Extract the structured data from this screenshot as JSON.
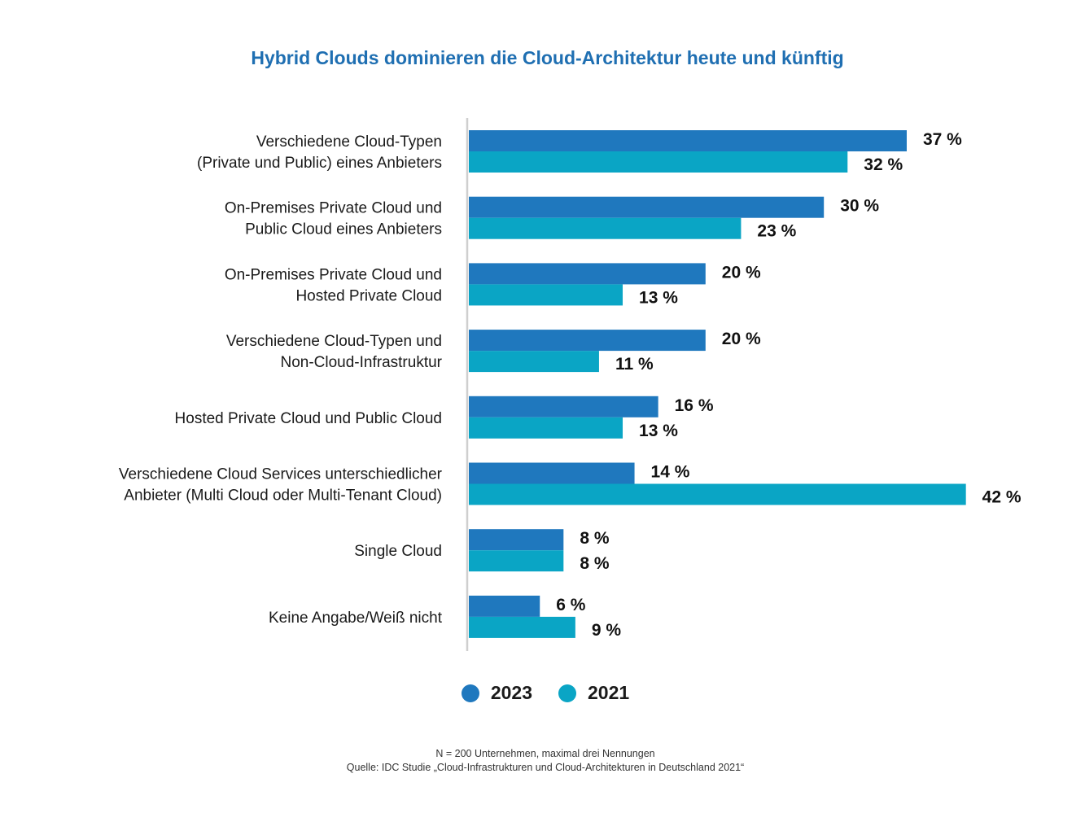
{
  "chart_data": {
    "type": "bar",
    "orientation": "horizontal",
    "title": "Hybrid Clouds dominieren die Cloud-Architektur heute und künftig",
    "categories": [
      [
        "Verschiedene Cloud-Typen",
        "(Private und Public) eines Anbieters"
      ],
      [
        "On-Premises  Private Cloud und",
        "Public Cloud eines Anbieters"
      ],
      [
        "On-Premises  Private Cloud und",
        "Hosted Private Cloud"
      ],
      [
        "Verschiedene Cloud-Typen und",
        "Non-Cloud-Infrastruktur"
      ],
      [
        "Hosted Private Cloud und Public Cloud"
      ],
      [
        "Verschiedene Cloud Services unterschiedlicher",
        "Anbieter (Multi Cloud oder Multi-Tenant Cloud)"
      ],
      [
        "Single Cloud"
      ],
      [
        "Keine Angabe/Weiß nicht"
      ]
    ],
    "series": [
      {
        "name": "2023",
        "color": "#1f78be",
        "values": [
          37,
          30,
          20,
          20,
          16,
          14,
          8,
          6
        ],
        "labels": [
          "37 %",
          "30 %",
          "20 %",
          "20 %",
          "16 %",
          "14 %",
          "8 %",
          "6 %"
        ]
      },
      {
        "name": "2021",
        "color": "#0aa5c5",
        "values": [
          32,
          23,
          13,
          11,
          13,
          42,
          8,
          9
        ],
        "labels": [
          "32 %",
          "23 %",
          "13 %",
          "11 %",
          "13 %",
          "42 %",
          "8 %",
          "9 %"
        ]
      }
    ],
    "xlim": [
      0,
      42
    ],
    "unit": "%",
    "legend": "bottom-center"
  },
  "footnote": {
    "line1": "N = 200 Unternehmen, maximal drei Nennungen",
    "line2": "Quelle: IDC Studie „Cloud-Infrastrukturen und Cloud-Architekturen in Deutschland 2021“"
  }
}
